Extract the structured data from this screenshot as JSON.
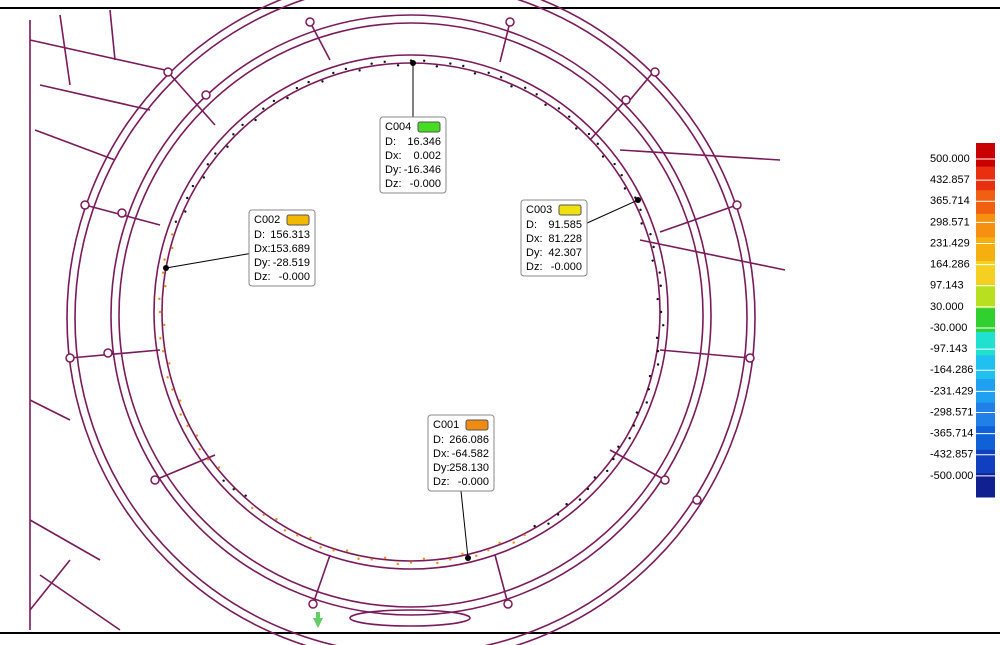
{
  "callouts": [
    {
      "id": "C004",
      "color": "#44dd22",
      "rows": [
        {
          "label": "D:",
          "value": "16.346"
        },
        {
          "label": "Dx:",
          "value": "0.002"
        },
        {
          "label": "Dy:",
          "value": "-16.346"
        },
        {
          "label": "Dz:",
          "value": "-0.000"
        }
      ]
    },
    {
      "id": "C002",
      "color": "#f5b800",
      "rows": [
        {
          "label": "D:",
          "value": "156.313"
        },
        {
          "label": "Dx:",
          "value": "153.689"
        },
        {
          "label": "Dy:",
          "value": "-28.519"
        },
        {
          "label": "Dz:",
          "value": "-0.000"
        }
      ]
    },
    {
      "id": "C003",
      "color": "#f0e010",
      "rows": [
        {
          "label": "D:",
          "value": "91.585"
        },
        {
          "label": "Dx:",
          "value": "81.228"
        },
        {
          "label": "Dy:",
          "value": "42.307"
        },
        {
          "label": "Dz:",
          "value": "-0.000"
        }
      ]
    },
    {
      "id": "C001",
      "color": "#f08a10",
      "rows": [
        {
          "label": "D:",
          "value": "266.086"
        },
        {
          "label": "Dx:",
          "value": "-64.582"
        },
        {
          "label": "Dy:",
          "value": "258.130"
        },
        {
          "label": "Dz:",
          "value": "-0.000"
        }
      ]
    }
  ],
  "legend": {
    "labels": [
      "500.000",
      "432.857",
      "365.714",
      "298.571",
      "231.429",
      "164.286",
      "97.143",
      "30.000",
      "-30.000",
      "-97.143",
      "-164.286",
      "-231.429",
      "-298.571",
      "-365.714",
      "-432.857",
      "-500.000"
    ],
    "colors": [
      "#c80000",
      "#e83010",
      "#f06010",
      "#f59010",
      "#f5b010",
      "#f5d020",
      "#b8e020",
      "#30d030",
      "#20e0d0",
      "#20c0f0",
      "#20a0f0",
      "#2080e8",
      "#1060d8",
      "#1040c0",
      "#102090"
    ]
  }
}
